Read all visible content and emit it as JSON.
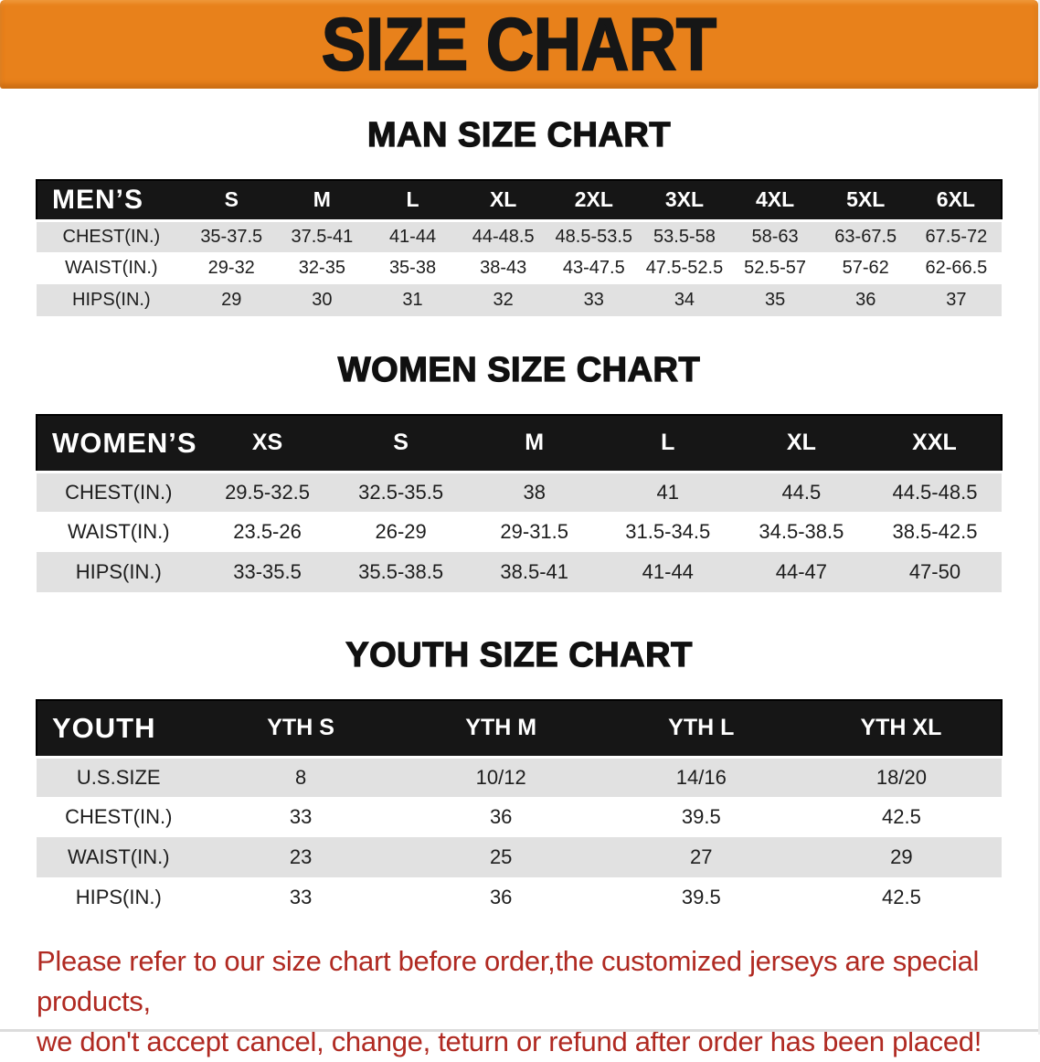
{
  "banner": {
    "title": "SIZE CHART"
  },
  "colors": {
    "banner_bg": "#e8811b",
    "header_bar_bg": "#161616",
    "stripe_bg": "#e1e1e1",
    "disclaimer_red": "#b02a22"
  },
  "sections": [
    {
      "id": "mens",
      "title": "MAN SIZE CHART",
      "header_label": "MEN’S",
      "columns": [
        "S",
        "M",
        "L",
        "XL",
        "2XL",
        "3XL",
        "4XL",
        "5XL",
        "6XL"
      ],
      "rows": [
        {
          "label": "CHEST(IN.)",
          "values": [
            "35-37.5",
            "37.5-41",
            "41-44",
            "44-48.5",
            "48.5-53.5",
            "53.5-58",
            "58-63",
            "63-67.5",
            "67.5-72"
          ]
        },
        {
          "label": "WAIST(IN.)",
          "values": [
            "29-32",
            "32-35",
            "35-38",
            "38-43",
            "43-47.5",
            "47.5-52.5",
            "52.5-57",
            "57-62",
            "62-66.5"
          ]
        },
        {
          "label": "HIPS(IN.)",
          "values": [
            "29",
            "30",
            "31",
            "32",
            "33",
            "34",
            "35",
            "36",
            "37"
          ]
        }
      ]
    },
    {
      "id": "womens",
      "title": "WOMEN SIZE CHART",
      "header_label": "WOMEN’S",
      "columns": [
        "XS",
        "S",
        "M",
        "L",
        "XL",
        "XXL"
      ],
      "rows": [
        {
          "label": "CHEST(IN.)",
          "values": [
            "29.5-32.5",
            "32.5-35.5",
            "38",
            "41",
            "44.5",
            "44.5-48.5"
          ]
        },
        {
          "label": "WAIST(IN.)",
          "values": [
            "23.5-26",
            "26-29",
            "29-31.5",
            "31.5-34.5",
            "34.5-38.5",
            "38.5-42.5"
          ]
        },
        {
          "label": "HIPS(IN.)",
          "values": [
            "33-35.5",
            "35.5-38.5",
            "38.5-41",
            "41-44",
            "44-47",
            "47-50"
          ]
        }
      ]
    },
    {
      "id": "youth",
      "title": "YOUTH SIZE CHART",
      "header_label": "YOUTH",
      "columns": [
        "YTH S",
        "YTH M",
        "YTH L",
        "YTH XL"
      ],
      "rows": [
        {
          "label": "U.S.SIZE",
          "values": [
            "8",
            "10/12",
            "14/16",
            "18/20"
          ]
        },
        {
          "label": "CHEST(IN.)",
          "values": [
            "33",
            "36",
            "39.5",
            "42.5"
          ]
        },
        {
          "label": "WAIST(IN.)",
          "values": [
            "23",
            "25",
            "27",
            "29"
          ]
        },
        {
          "label": "HIPS(IN.)",
          "values": [
            "33",
            "36",
            "39.5",
            "42.5"
          ]
        }
      ]
    }
  ],
  "disclaimer": {
    "line1": "Please refer to our size chart before order,the customized jerseys are special products,",
    "line2": "we don't accept cancel, change, teturn or refund after order has been placed!"
  }
}
